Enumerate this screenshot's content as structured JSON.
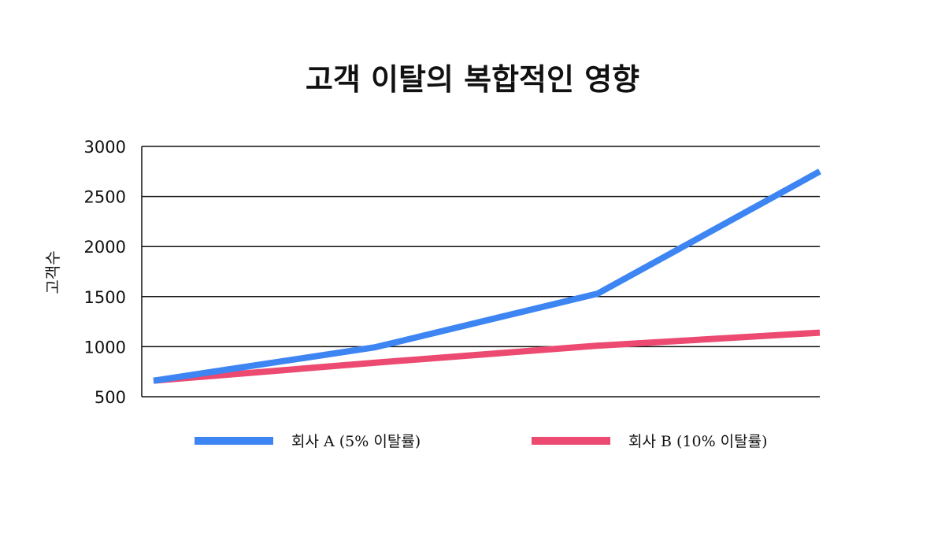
{
  "chart_data": {
    "type": "line",
    "title": "고객 이탈의 복합적인 영향",
    "xlabel": "",
    "ylabel": "고객수",
    "ylim": [
      500,
      3000
    ],
    "yticks": [
      "3000",
      "2500",
      "2000",
      "1500",
      "1000",
      "500"
    ],
    "x": [
      1,
      2,
      3,
      4
    ],
    "grid": true,
    "legend_position": "bottom",
    "series": [
      {
        "name": "회사 A (5% 이탈률)",
        "color": "#3d85f2",
        "values": [
          660,
          995,
          1530,
          2750
        ]
      },
      {
        "name": "회사 B (10% 이탈률)",
        "color": "#ec4a70",
        "values": [
          660,
          840,
          1010,
          1140
        ]
      }
    ]
  }
}
